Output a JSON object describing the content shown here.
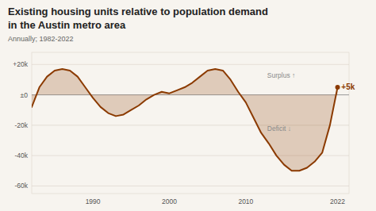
{
  "chart_data": {
    "type": "area",
    "title": [
      "Existing housing units relative to population demand",
      "in the Austin metro area"
    ],
    "subtitle": "Annually; 1982-2022",
    "x": [
      1982,
      1983,
      1984,
      1985,
      1986,
      1987,
      1988,
      1989,
      1990,
      1991,
      1992,
      1993,
      1994,
      1995,
      1996,
      1997,
      1998,
      1999,
      2000,
      2001,
      2002,
      2003,
      2004,
      2005,
      2006,
      2007,
      2008,
      2009,
      2010,
      2011,
      2012,
      2013,
      2014,
      2015,
      2016,
      2017,
      2018,
      2019,
      2020,
      2021,
      2022
    ],
    "values": [
      -8000,
      5000,
      12000,
      16000,
      17000,
      16000,
      12000,
      5000,
      -2000,
      -8000,
      -12000,
      -14000,
      -13000,
      -10000,
      -7000,
      -3000,
      0,
      2000,
      1000,
      3000,
      5000,
      8000,
      12000,
      16000,
      17000,
      16000,
      10000,
      2000,
      -5000,
      -15000,
      -25000,
      -32000,
      -40000,
      -46000,
      -50000,
      -50000,
      -48000,
      -44000,
      -38000,
      -20000,
      5000
    ],
    "color": "#8B3A00",
    "xlim": [
      1982,
      2023.5
    ],
    "ylim": [
      -65000,
      28000
    ],
    "xticks": [
      1990,
      2000,
      2010,
      2022
    ],
    "yticks": [
      {
        "value": -60000,
        "label": "-60k"
      },
      {
        "value": -40000,
        "label": "-40k"
      },
      {
        "value": -20000,
        "label": "-20k"
      },
      {
        "value": 0,
        "label": "±0"
      },
      {
        "value": 20000,
        "label": "+20k"
      }
    ],
    "grid": true,
    "annotations": [
      {
        "text": "Surplus ↑",
        "x": 2012.8,
        "y": 13000
      },
      {
        "text": "Deficit ↓",
        "x": 2012.8,
        "y": -22000
      },
      {
        "text": "+5k",
        "x": 2022.5,
        "y": 5000
      }
    ]
  }
}
